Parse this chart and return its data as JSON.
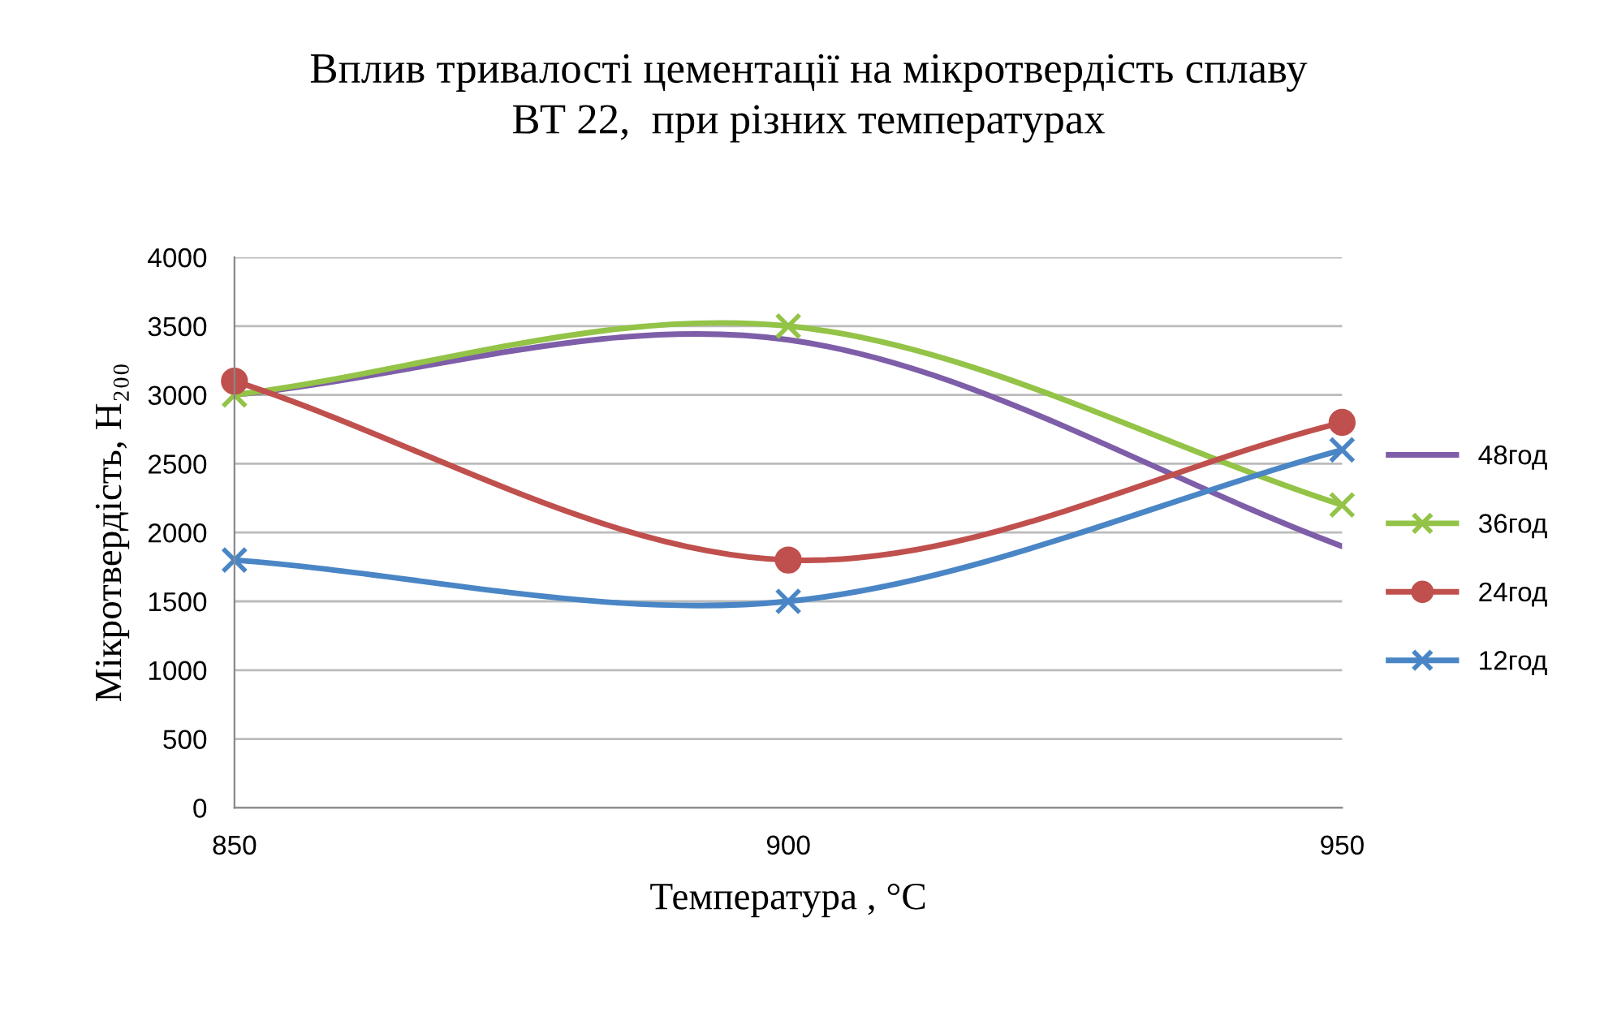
{
  "chart_data": {
    "type": "line",
    "title": "Вплив тривалості цементації на мікротвердість сплаву\nВТ 22,  при різних температурах",
    "xlabel": "Температура , °C",
    "ylabel": "Мікротвердість, H₂₀₀",
    "x": [
      850,
      900,
      950
    ],
    "xlim": [
      850,
      950
    ],
    "xticks": [
      850,
      900,
      950
    ],
    "ylim": [
      0,
      4000
    ],
    "yticks": [
      0,
      500,
      1000,
      1500,
      2000,
      2500,
      3000,
      3500,
      4000
    ],
    "grid": "y",
    "legend": "right",
    "series": [
      {
        "name": "48год",
        "color": "#7e5ea8",
        "values": [
          3000,
          3400,
          1900
        ],
        "marker": "none"
      },
      {
        "name": "36год",
        "color": "#93c347",
        "values": [
          3000,
          3500,
          2200
        ],
        "marker": "cross"
      },
      {
        "name": "24год",
        "color": "#c0504d",
        "values": [
          3100,
          1800,
          2800
        ],
        "marker": "circle"
      },
      {
        "name": "12год",
        "color": "#4a86c5",
        "values": [
          1800,
          1500,
          2600
        ],
        "marker": "cross"
      }
    ]
  }
}
